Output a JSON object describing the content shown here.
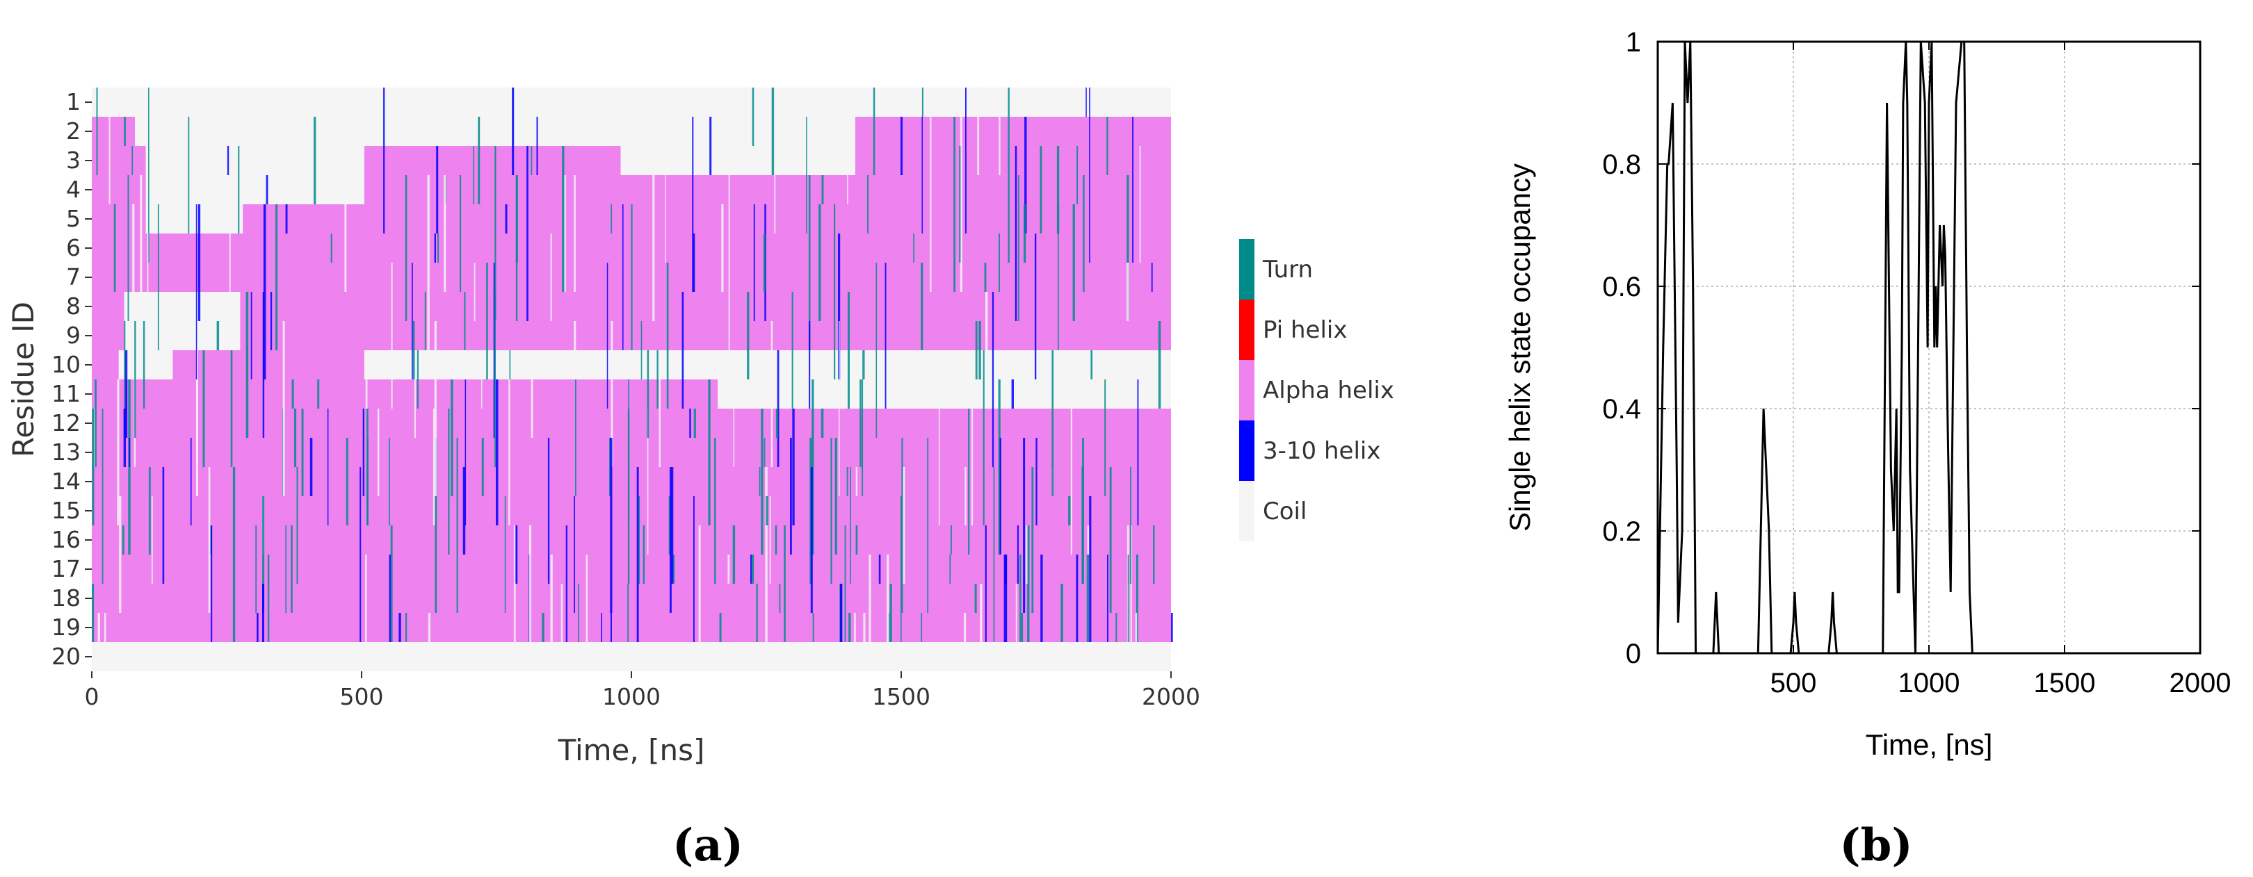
{
  "panels": {
    "a": {
      "label": "(a)"
    },
    "b": {
      "label": "(b)"
    }
  },
  "chart_data": [
    {
      "type": "heatmap",
      "title": "",
      "xlabel": "Time, [ns]",
      "ylabel": "Residue ID",
      "xlim": [
        0,
        2000
      ],
      "x_ticks": [
        0,
        500,
        1000,
        1500,
        2000
      ],
      "residues": [
        1,
        2,
        3,
        4,
        5,
        6,
        7,
        8,
        9,
        10,
        11,
        12,
        13,
        14,
        15,
        16,
        17,
        18,
        19,
        20
      ],
      "legend": [
        {
          "state": "Turn",
          "color": "#008b8b"
        },
        {
          "state": "Pi helix",
          "color": "#ff0000"
        },
        {
          "state": "Alpha helix",
          "color": "#ee82ee"
        },
        {
          "state": "3-10 helix",
          "color": "#0000ff"
        },
        {
          "state": "Coil",
          "color": "#f5f5f5"
        }
      ],
      "dominant_segments": [
        {
          "residues": [
            1,
            1
          ],
          "t_start": 0,
          "t_end": 2000,
          "state": "Coil"
        },
        {
          "residues": [
            2,
            2
          ],
          "t_start": 0,
          "t_end": 80,
          "state": "Alpha helix"
        },
        {
          "residues": [
            2,
            2
          ],
          "t_start": 80,
          "t_end": 1415,
          "state": "Coil"
        },
        {
          "residues": [
            2,
            2
          ],
          "t_start": 1415,
          "t_end": 2000,
          "state": "Alpha helix"
        },
        {
          "residues": [
            3,
            3
          ],
          "t_start": 0,
          "t_end": 100,
          "state": "Alpha helix"
        },
        {
          "residues": [
            3,
            3
          ],
          "t_start": 100,
          "t_end": 505,
          "state": "Coil"
        },
        {
          "residues": [
            3,
            3
          ],
          "t_start": 505,
          "t_end": 980,
          "state": "Alpha helix"
        },
        {
          "residues": [
            3,
            3
          ],
          "t_start": 980,
          "t_end": 1150,
          "state": "Coil"
        },
        {
          "residues": [
            3,
            3
          ],
          "t_start": 1150,
          "t_end": 1415,
          "state": "Coil"
        },
        {
          "residues": [
            3,
            3
          ],
          "t_start": 1415,
          "t_end": 2000,
          "state": "Alpha helix"
        },
        {
          "residues": [
            4,
            4
          ],
          "t_start": 0,
          "t_end": 100,
          "state": "Alpha helix"
        },
        {
          "residues": [
            4,
            4
          ],
          "t_start": 100,
          "t_end": 505,
          "state": "Coil"
        },
        {
          "residues": [
            4,
            4
          ],
          "t_start": 505,
          "t_end": 2000,
          "state": "Alpha helix"
        },
        {
          "residues": [
            5,
            5
          ],
          "t_start": 0,
          "t_end": 100,
          "state": "Alpha helix"
        },
        {
          "residues": [
            5,
            5
          ],
          "t_start": 100,
          "t_end": 280,
          "state": "Coil"
        },
        {
          "residues": [
            5,
            5
          ],
          "t_start": 280,
          "t_end": 2000,
          "state": "Alpha helix"
        },
        {
          "residues": [
            6,
            7
          ],
          "t_start": 0,
          "t_end": 2000,
          "state": "Alpha helix"
        },
        {
          "residues": [
            8,
            9
          ],
          "t_start": 0,
          "t_end": 60,
          "state": "Alpha helix"
        },
        {
          "residues": [
            8,
            9
          ],
          "t_start": 60,
          "t_end": 275,
          "state": "Coil"
        },
        {
          "residues": [
            8,
            9
          ],
          "t_start": 275,
          "t_end": 2000,
          "state": "Alpha helix"
        },
        {
          "residues": [
            10,
            10
          ],
          "t_start": 0,
          "t_end": 50,
          "state": "Alpha helix"
        },
        {
          "residues": [
            10,
            10
          ],
          "t_start": 50,
          "t_end": 150,
          "state": "Coil"
        },
        {
          "residues": [
            10,
            10
          ],
          "t_start": 150,
          "t_end": 505,
          "state": "Alpha helix"
        },
        {
          "residues": [
            10,
            10
          ],
          "t_start": 505,
          "t_end": 2000,
          "state": "Coil"
        },
        {
          "residues": [
            11,
            11
          ],
          "t_start": 0,
          "t_end": 1160,
          "state": "Alpha helix"
        },
        {
          "residues": [
            11,
            11
          ],
          "t_start": 1160,
          "t_end": 2000,
          "state": "Coil"
        },
        {
          "residues": [
            12,
            19
          ],
          "t_start": 0,
          "t_end": 2000,
          "state": "Alpha helix"
        },
        {
          "residues": [
            20,
            20
          ],
          "t_start": 0,
          "t_end": 2000,
          "state": "Coil"
        }
      ]
    },
    {
      "type": "line",
      "title": "",
      "xlabel": "Time, [ns]",
      "ylabel": "Single helix state occupancy",
      "xlim": [
        0,
        2000
      ],
      "ylim": [
        0,
        1
      ],
      "x_ticks": [
        500,
        1000,
        1500,
        2000
      ],
      "y_ticks": [
        0,
        0.2,
        0.4,
        0.6,
        0.8,
        1
      ],
      "y_tick_labels": [
        "0",
        "0.2",
        "0.4",
        "0.6",
        "0.8",
        "1"
      ],
      "grid": true,
      "series": [
        {
          "name": "occupancy",
          "color": "#000000",
          "x": [
            0,
            20,
            35,
            40,
            55,
            70,
            75,
            90,
            100,
            110,
            120,
            130,
            140,
            170,
            180,
            205,
            215,
            225,
            240,
            370,
            380,
            390,
            400,
            410,
            420,
            490,
            500,
            505,
            510,
            520,
            630,
            640,
            645,
            650,
            660,
            830,
            845,
            860,
            870,
            880,
            885,
            890,
            900,
            905,
            915,
            920,
            930,
            950,
            970,
            985,
            995,
            1000,
            1010,
            1020,
            1025,
            1030,
            1040,
            1050,
            1055,
            1060,
            1065,
            1070,
            1080,
            1090,
            1100,
            1110,
            1120,
            1130,
            1140,
            1150,
            1160,
            1170,
            2000
          ],
          "y": [
            0,
            0.5,
            0.8,
            0.8,
            0.9,
            0.3,
            0.05,
            0.2,
            1.0,
            0.9,
            1.0,
            0.6,
            0,
            0,
            0,
            0,
            0.1,
            0,
            0,
            0,
            0.2,
            0.4,
            0.3,
            0.2,
            0,
            0,
            0.05,
            0.1,
            0.05,
            0,
            0,
            0.05,
            0.1,
            0.05,
            0,
            0,
            0.9,
            0.3,
            0.2,
            0.4,
            0.1,
            0.1,
            0.5,
            0.9,
            1.0,
            0.9,
            0.3,
            0,
            1.0,
            0.9,
            0.5,
            0.9,
            1.0,
            0.5,
            0.6,
            0.5,
            0.7,
            0.6,
            0.7,
            0.65,
            0.5,
            0.35,
            0.1,
            0.5,
            0.9,
            0.95,
            1.0,
            1.0,
            0.5,
            0.1,
            0,
            0,
            0
          ]
        }
      ]
    }
  ]
}
